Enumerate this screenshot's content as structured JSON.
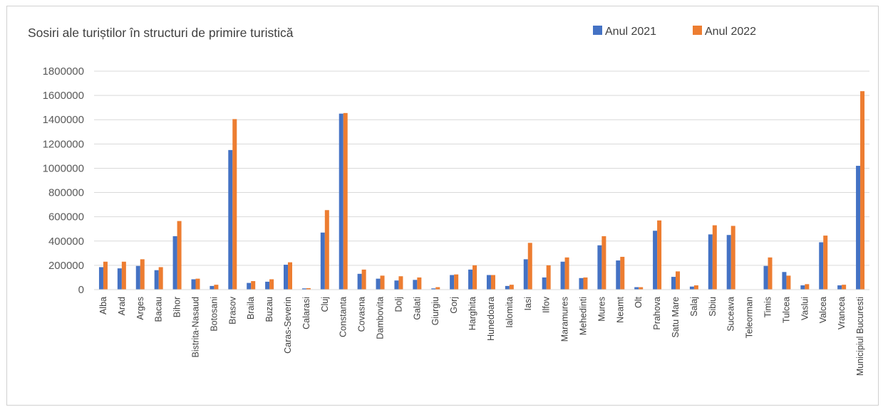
{
  "chart_data": {
    "type": "bar",
    "title": "Sosiri ale turiștilor în structuri de primire turistică",
    "xlabel": "",
    "ylabel": "",
    "ylim": [
      0,
      1800000
    ],
    "yticks": [
      0,
      200000,
      400000,
      600000,
      800000,
      1000000,
      1200000,
      1400000,
      1600000,
      1800000
    ],
    "grid": true,
    "legend_position": "top-right",
    "categories": [
      "Alba",
      "Arad",
      "Arges",
      "Bacau",
      "Bihor",
      "Bistrita-Nasaud",
      "Botosani",
      "Brasov",
      "Braila",
      "Buzau",
      "Caras-Severin",
      "Calarasi",
      "Cluj",
      "Constanta",
      "Covasna",
      "Dambovita",
      "Dolj",
      "Galati",
      "Giurgiu",
      "Gorj",
      "Harghita",
      "Hunedoara",
      "Ialomita",
      "Iasi",
      "Ilfov",
      "Maramures",
      "Mehedinti",
      "Mures",
      "Neamt",
      "Olt",
      "Prahova",
      "Satu Mare",
      "Salaj",
      "Sibiu",
      "Suceava",
      "Teleorman",
      "Timis",
      "Tulcea",
      "Vaslui",
      "Valcea",
      "Vrancea",
      "Municipiul Bucuresti"
    ],
    "series": [
      {
        "name": "Anul 2021",
        "color": "#4472C4",
        "values": [
          185000,
          175000,
          195000,
          160000,
          440000,
          85000,
          30000,
          1150000,
          55000,
          65000,
          205000,
          10000,
          470000,
          1450000,
          130000,
          90000,
          75000,
          80000,
          10000,
          120000,
          165000,
          120000,
          30000,
          250000,
          100000,
          230000,
          95000,
          365000,
          240000,
          20000,
          485000,
          105000,
          25000,
          455000,
          450000,
          0,
          195000,
          145000,
          35000,
          390000,
          35000,
          1020000
        ]
      },
      {
        "name": "Anul 2022",
        "color": "#ED7D31",
        "values": [
          230000,
          230000,
          250000,
          185000,
          565000,
          90000,
          40000,
          1405000,
          70000,
          85000,
          225000,
          12000,
          655000,
          1455000,
          165000,
          115000,
          110000,
          100000,
          20000,
          125000,
          200000,
          120000,
          40000,
          385000,
          200000,
          265000,
          100000,
          440000,
          270000,
          20000,
          570000,
          150000,
          35000,
          530000,
          525000,
          0,
          265000,
          115000,
          45000,
          445000,
          40000,
          1635000
        ]
      }
    ]
  },
  "clipped_header_text": "… sosiri ale turiștilor în structuri de primire turistică …"
}
